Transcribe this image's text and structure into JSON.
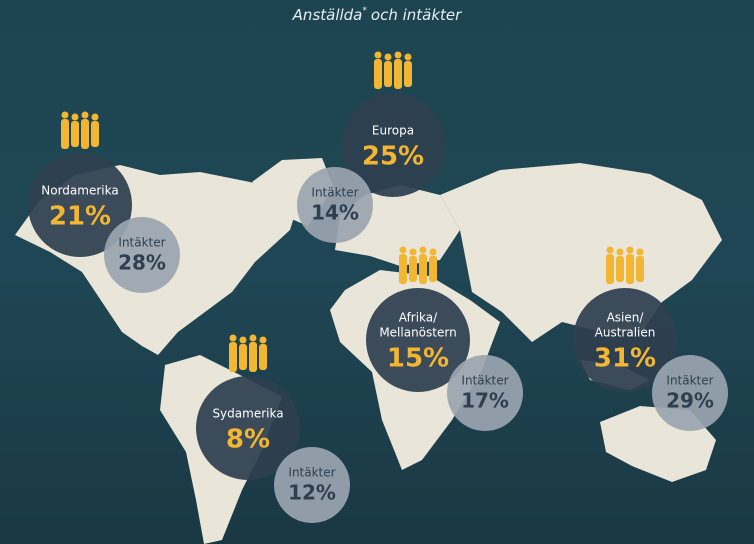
{
  "title": {
    "main": "Anställda",
    "mark": "*",
    "rest": "och intäkter"
  },
  "regions": [
    {
      "name": [
        "Nordamerika"
      ],
      "employees": "21%",
      "revenue_label": "Intäkter",
      "revenue": "28%"
    },
    {
      "name": [
        "Europa"
      ],
      "employees": "25%",
      "revenue_label": "Intäkter",
      "revenue": "14%"
    },
    {
      "name": [
        "Afrika/",
        "Mellanöstern"
      ],
      "employees": "15%",
      "revenue_label": "Intäkter",
      "revenue": "17%"
    },
    {
      "name": [
        "Asien/",
        "Australien"
      ],
      "employees": "31%",
      "revenue_label": "Intäkter",
      "revenue": "29%"
    },
    {
      "name": [
        "Sydamerika"
      ],
      "employees": "8%",
      "revenue_label": "Intäkter",
      "revenue": "12%"
    }
  ]
}
